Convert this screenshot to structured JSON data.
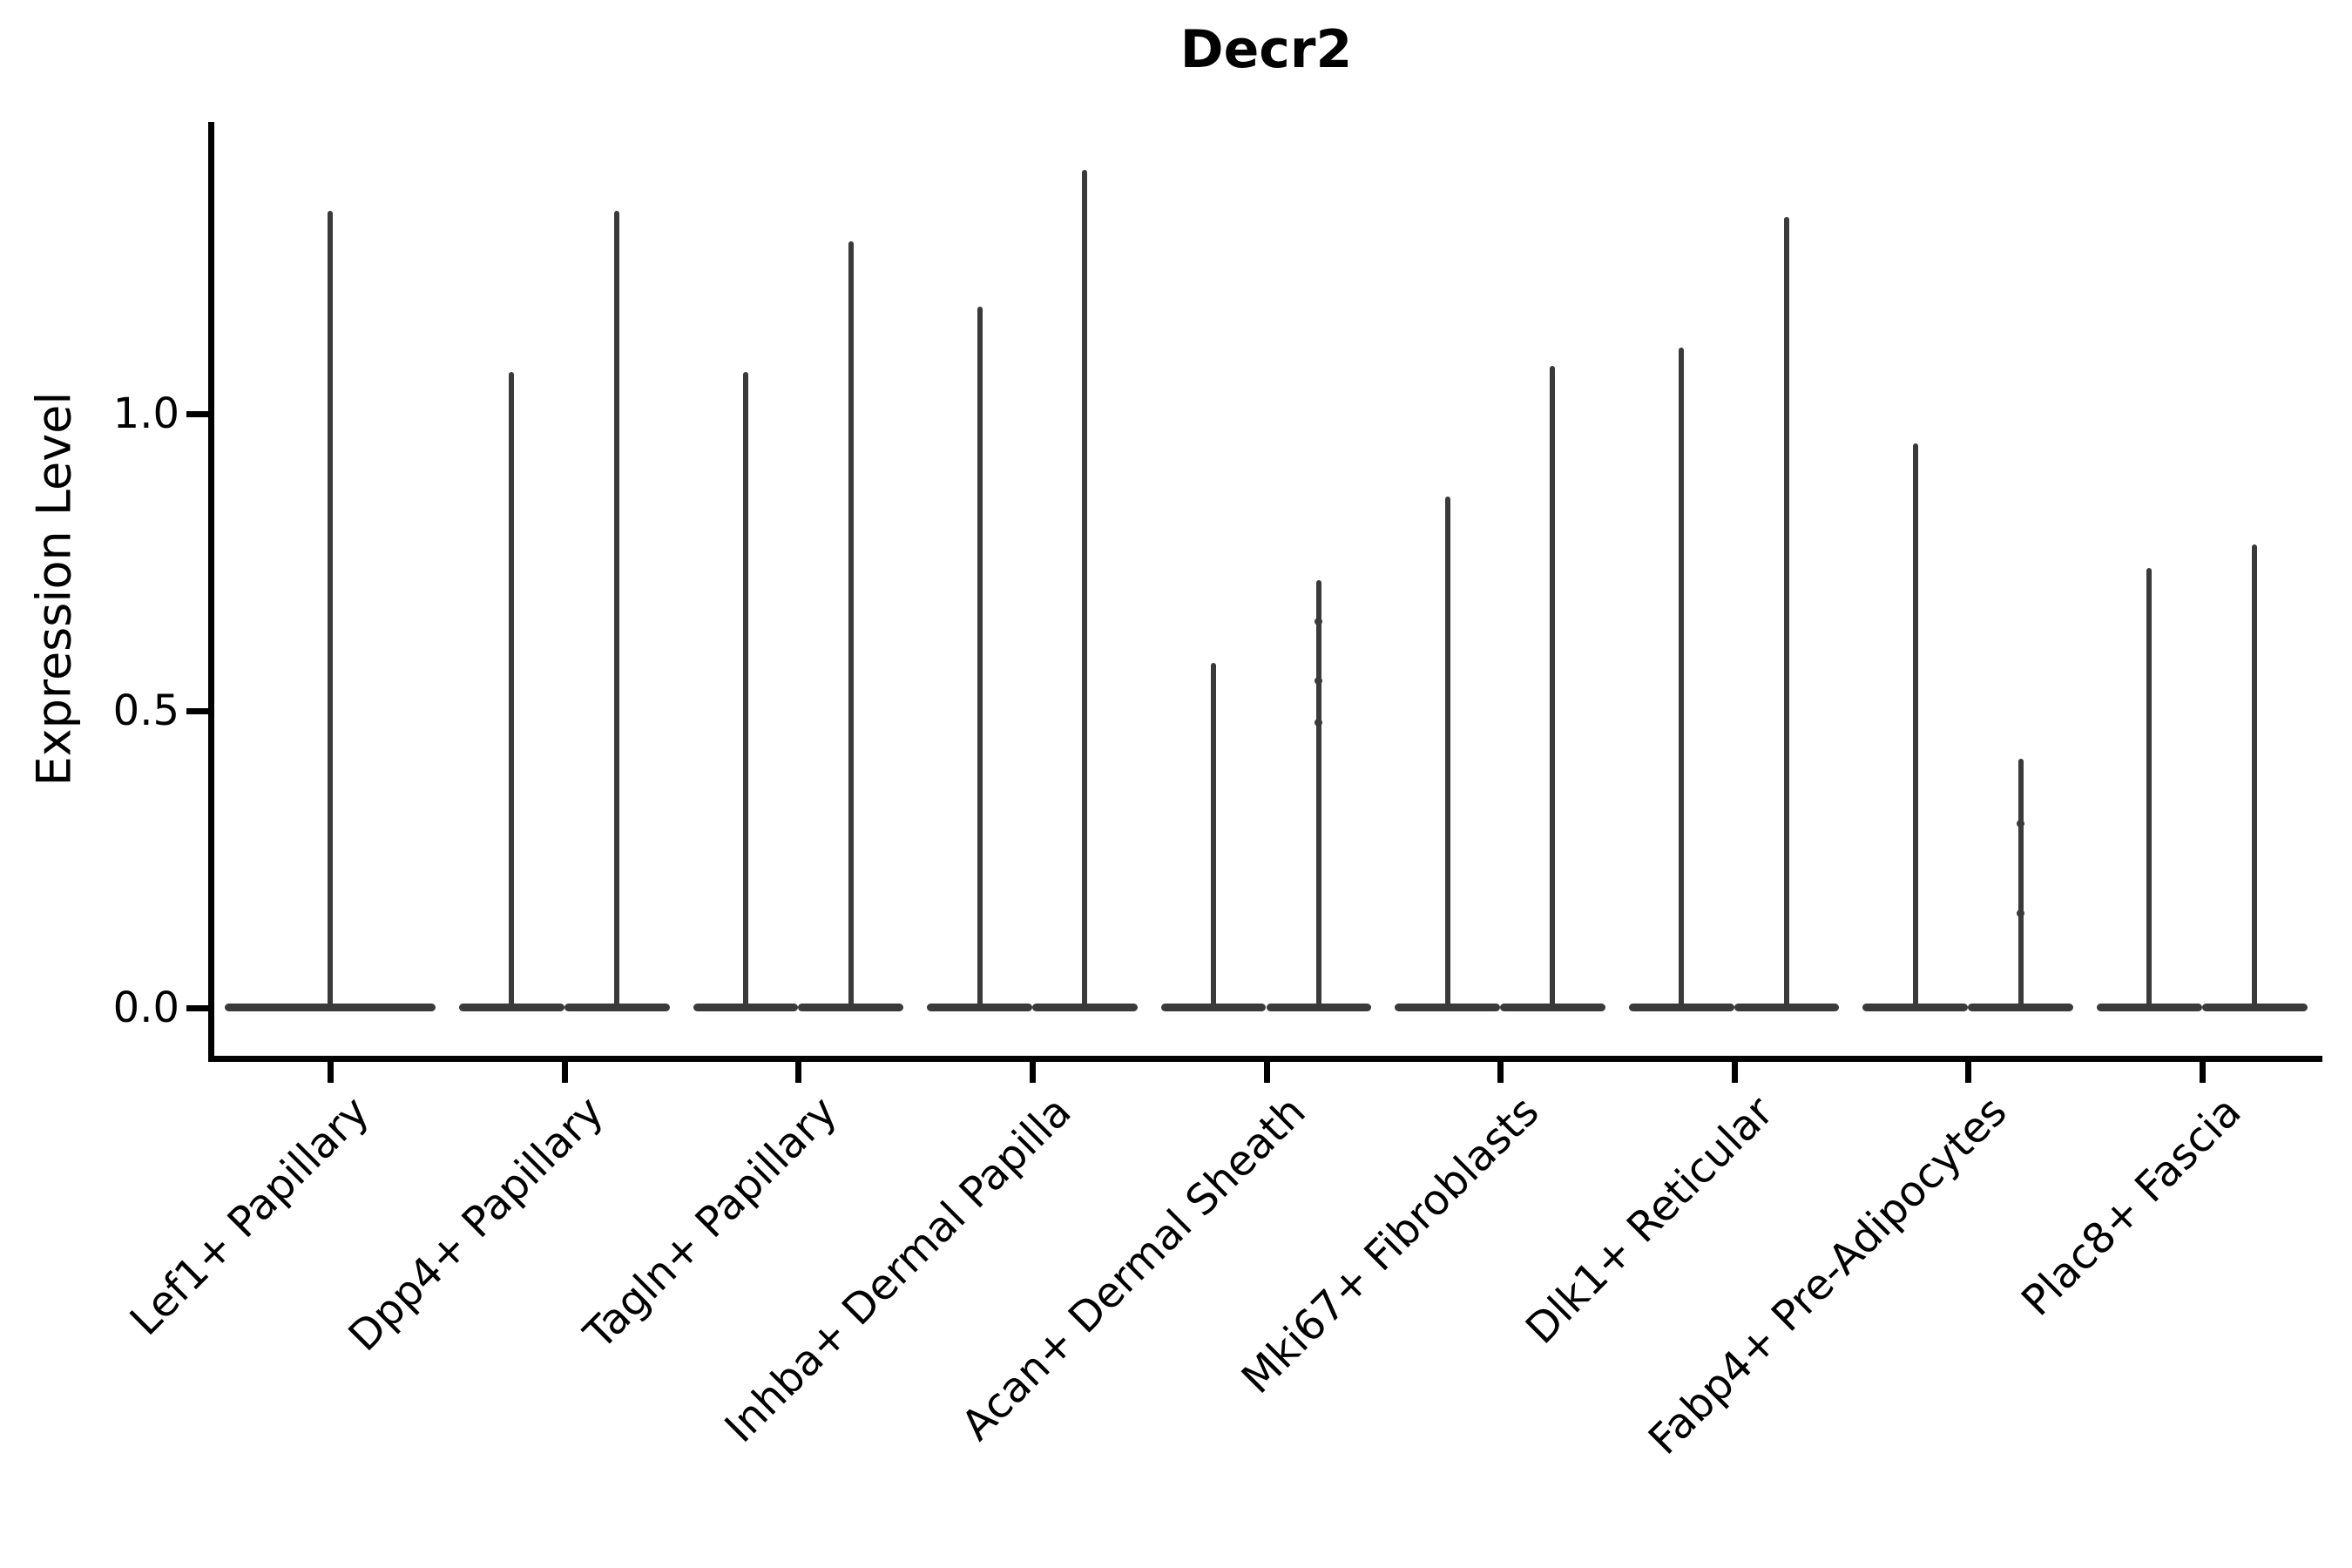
{
  "title": "Decr2",
  "y_axis": {
    "label": "Expression Level",
    "tick_labels": [
      "0.0",
      "0.5",
      "1.0"
    ]
  },
  "chart_data": {
    "type": "violin",
    "title": "Decr2",
    "xlabel": "",
    "ylabel": "Expression Level",
    "ylim": [
      -0.08,
      1.49
    ],
    "yticks": [
      0.0,
      0.5,
      1.0
    ],
    "ytick_labels": [
      "0.0",
      "0.5",
      "1.0"
    ],
    "grid": "off",
    "legend": "none",
    "violin_color": "#3a3a3a",
    "axis_color": "#000000",
    "baseline_value": 0.0,
    "description": "Violin plot of Decr2 expression; each violin is almost entirely massed at 0 expression (flat wide base) with a thin density spike reaching the maximum expression value. Most cell types show two side-by-side violins (two groups), the first shows one.",
    "categories": [
      "Lef1+ Papillary",
      "Dpp4+ Papillary",
      "Tagln+ Papillary",
      "Inhba+ Dermal Papilla",
      "Acan+ Dermal Sheath",
      "Mki67+ Fibroblasts",
      "Dlk1+ Reticular",
      "Fabp4+ Pre-Adipocytes",
      "Plac8+ Fascia"
    ],
    "groups": [
      {
        "category": "Lef1+ Papillary",
        "violins": [
          {
            "offset_frac": 0.0,
            "width_frac": 0.9,
            "max_expression": 1.34,
            "points": []
          }
        ]
      },
      {
        "category": "Dpp4+ Papillary",
        "violins": [
          {
            "offset_frac": -0.225,
            "width_frac": 0.45,
            "max_expression": 1.07,
            "points": []
          },
          {
            "offset_frac": 0.225,
            "width_frac": 0.45,
            "max_expression": 1.34,
            "points": []
          }
        ]
      },
      {
        "category": "Tagln+ Papillary",
        "violins": [
          {
            "offset_frac": -0.225,
            "width_frac": 0.45,
            "max_expression": 1.07,
            "points": []
          },
          {
            "offset_frac": 0.225,
            "width_frac": 0.45,
            "max_expression": 1.29,
            "points": []
          }
        ]
      },
      {
        "category": "Inhba+ Dermal Papilla",
        "violins": [
          {
            "offset_frac": -0.225,
            "width_frac": 0.45,
            "max_expression": 1.18,
            "points": []
          },
          {
            "offset_frac": 0.225,
            "width_frac": 0.45,
            "max_expression": 1.41,
            "points": []
          }
        ]
      },
      {
        "category": "Acan+ Dermal Sheath",
        "violins": [
          {
            "offset_frac": -0.225,
            "width_frac": 0.45,
            "max_expression": 0.58,
            "points": []
          },
          {
            "offset_frac": 0.225,
            "width_frac": 0.45,
            "max_expression": 0.72,
            "points": [
              0.65,
              0.55,
              0.48
            ]
          }
        ]
      },
      {
        "category": "Mki67+ Fibroblasts",
        "violins": [
          {
            "offset_frac": -0.225,
            "width_frac": 0.45,
            "max_expression": 0.86,
            "points": []
          },
          {
            "offset_frac": 0.225,
            "width_frac": 0.45,
            "max_expression": 1.08,
            "points": []
          }
        ]
      },
      {
        "category": "Dlk1+ Reticular",
        "violins": [
          {
            "offset_frac": -0.225,
            "width_frac": 0.45,
            "max_expression": 1.11,
            "points": []
          },
          {
            "offset_frac": 0.225,
            "width_frac": 0.45,
            "max_expression": 1.33,
            "points": []
          }
        ]
      },
      {
        "category": "Fabp4+ Pre-Adipocytes",
        "violins": [
          {
            "offset_frac": -0.225,
            "width_frac": 0.45,
            "max_expression": 0.95,
            "points": []
          },
          {
            "offset_frac": 0.225,
            "width_frac": 0.45,
            "max_expression": 0.42,
            "points": [
              0.31,
              0.16
            ]
          }
        ]
      },
      {
        "category": "Plac8+ Fascia",
        "violins": [
          {
            "offset_frac": -0.225,
            "width_frac": 0.45,
            "max_expression": 0.74,
            "points": []
          },
          {
            "offset_frac": 0.225,
            "width_frac": 0.45,
            "max_expression": 0.78,
            "points": []
          }
        ]
      }
    ]
  }
}
